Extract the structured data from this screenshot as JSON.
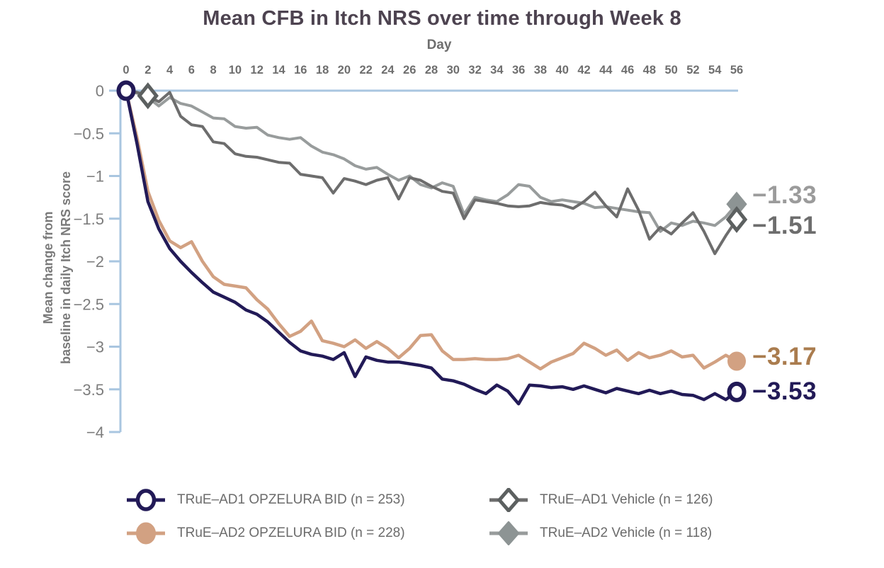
{
  "title": "Mean CFB in Itch NRS over time through Week 8",
  "x_axis": {
    "label": "Day",
    "ticks": [
      0,
      2,
      4,
      6,
      8,
      10,
      12,
      14,
      16,
      18,
      20,
      22,
      24,
      26,
      28,
      30,
      32,
      34,
      36,
      38,
      40,
      42,
      44,
      46,
      48,
      50,
      52,
      54,
      56
    ]
  },
  "y_axis": {
    "label_line1": "Mean change from",
    "label_line2": "baseline in daily Itch NRS score",
    "tick_labels": [
      "0",
      "−0.5",
      "−1",
      "−1.5",
      "−2",
      "−2.5",
      "−3",
      "−3.5",
      "−4"
    ],
    "tick_values": [
      0,
      -0.5,
      -1,
      -1.5,
      -2,
      -2.5,
      -3,
      -3.5,
      -4
    ]
  },
  "colors": {
    "axis": "#a9c6e0",
    "title": "#4d4350",
    "x_tick_text": "#6e6e6e",
    "y_tick_text": "#7d7d7d",
    "day_label": "#6e6e6e",
    "y_axis_title": "#7a7a7a",
    "legend_text": "#6b6b6b"
  },
  "chart_data": {
    "type": "line",
    "xlabel": "Day",
    "ylabel": "Mean change from baseline in daily Itch NRS score",
    "xlim": [
      0,
      56
    ],
    "ylim": [
      -4,
      0
    ],
    "x_step_days": 1,
    "series": [
      {
        "name": "TRuE–AD1 OPZELURA BID (n = 253)",
        "color": "#221a57",
        "stroke_width": 4.5,
        "end_value_label": "−3.53",
        "label_color": "#221a57",
        "marker": {
          "shape": "circle",
          "fill": "#ffffff",
          "stroke": "#221a57",
          "days": [
            0,
            56
          ]
        },
        "values": [
          0,
          -0.62,
          -1.3,
          -1.62,
          -1.85,
          -2.0,
          -2.13,
          -2.25,
          -2.36,
          -2.42,
          -2.48,
          -2.57,
          -2.62,
          -2.71,
          -2.83,
          -2.95,
          -3.05,
          -3.09,
          -3.11,
          -3.15,
          -3.07,
          -3.35,
          -3.12,
          -3.16,
          -3.18,
          -3.18,
          -3.2,
          -3.22,
          -3.25,
          -3.38,
          -3.4,
          -3.44,
          -3.5,
          -3.55,
          -3.45,
          -3.52,
          -3.67,
          -3.45,
          -3.46,
          -3.48,
          -3.47,
          -3.5,
          -3.46,
          -3.5,
          -3.54,
          -3.49,
          -3.52,
          -3.55,
          -3.51,
          -3.55,
          -3.52,
          -3.56,
          -3.57,
          -3.62,
          -3.55,
          -3.62,
          -3.53
        ]
      },
      {
        "name": "TRuE–AD2 OPZELURA BID (n = 228)",
        "color": "#d2a182",
        "stroke_width": 4.5,
        "end_value_label": "−3.17",
        "label_color": "#aa7c4e",
        "marker": {
          "shape": "circle",
          "fill": "#d2a182",
          "stroke": "#d2a182",
          "days": [
            56
          ]
        },
        "values": [
          0,
          -0.55,
          -1.18,
          -1.52,
          -1.76,
          -1.84,
          -1.77,
          -2.0,
          -2.18,
          -2.27,
          -2.29,
          -2.31,
          -2.45,
          -2.56,
          -2.73,
          -2.88,
          -2.82,
          -2.7,
          -2.93,
          -2.96,
          -3.0,
          -2.92,
          -3.02,
          -2.94,
          -3.02,
          -3.13,
          -3.02,
          -2.87,
          -2.86,
          -3.05,
          -3.15,
          -3.15,
          -3.14,
          -3.15,
          -3.15,
          -3.14,
          -3.1,
          -3.18,
          -3.26,
          -3.18,
          -3.13,
          -3.08,
          -2.96,
          -3.02,
          -3.1,
          -3.04,
          -3.16,
          -3.07,
          -3.13,
          -3.1,
          -3.05,
          -3.12,
          -3.1,
          -3.25,
          -3.18,
          -3.1,
          -3.17
        ]
      },
      {
        "name": "TRuE–AD1 Vehicle (n = 126)",
        "color": "#6d6d6d",
        "stroke_width": 4,
        "end_value_label": "−1.51",
        "label_color": "#6d6d6d",
        "marker": {
          "shape": "diamond",
          "fill": "#ffffff",
          "stroke": "#5c6060",
          "days": [
            2,
            56
          ]
        },
        "values": [
          0,
          -0.02,
          -0.06,
          -0.13,
          -0.02,
          -0.3,
          -0.4,
          -0.42,
          -0.6,
          -0.62,
          -0.74,
          -0.77,
          -0.78,
          -0.81,
          -0.84,
          -0.85,
          -0.98,
          -1.0,
          -1.02,
          -1.2,
          -1.03,
          -1.06,
          -1.1,
          -1.05,
          -1.02,
          -1.27,
          -1.02,
          -1.05,
          -1.12,
          -1.18,
          -1.2,
          -1.5,
          -1.28,
          -1.3,
          -1.32,
          -1.35,
          -1.36,
          -1.35,
          -1.31,
          -1.33,
          -1.34,
          -1.38,
          -1.3,
          -1.19,
          -1.35,
          -1.48,
          -1.15,
          -1.4,
          -1.74,
          -1.6,
          -1.68,
          -1.55,
          -1.43,
          -1.65,
          -1.91,
          -1.7,
          -1.51
        ]
      },
      {
        "name": "TRuE–AD2 Vehicle (n = 118)",
        "color": "#989c9c",
        "stroke_width": 4,
        "end_value_label": "−1.33",
        "label_color": "#9b9b9b",
        "marker": {
          "shape": "diamond",
          "fill": "#8d9494",
          "stroke": "#8d9494",
          "days": [
            56
          ]
        },
        "values": [
          0,
          -0.03,
          -0.08,
          -0.18,
          -0.08,
          -0.15,
          -0.18,
          -0.25,
          -0.32,
          -0.33,
          -0.42,
          -0.44,
          -0.43,
          -0.52,
          -0.55,
          -0.57,
          -0.55,
          -0.65,
          -0.72,
          -0.75,
          -0.8,
          -0.88,
          -0.92,
          -0.9,
          -0.98,
          -1.05,
          -1.0,
          -1.1,
          -1.14,
          -1.08,
          -1.12,
          -1.45,
          -1.25,
          -1.28,
          -1.3,
          -1.22,
          -1.1,
          -1.12,
          -1.25,
          -1.3,
          -1.28,
          -1.3,
          -1.32,
          -1.37,
          -1.36,
          -1.38,
          -1.4,
          -1.42,
          -1.43,
          -1.65,
          -1.55,
          -1.58,
          -1.53,
          -1.55,
          -1.58,
          -1.48,
          -1.33
        ]
      }
    ]
  },
  "annotations": [
    {
      "text": "−1.33",
      "color": "#9b9b9b"
    },
    {
      "text": "−1.51",
      "color": "#6d6d6d"
    },
    {
      "text": "−3.17",
      "color": "#aa7c4e"
    },
    {
      "text": "−3.53",
      "color": "#221a57"
    }
  ],
  "legend": {
    "items": [
      {
        "label": "TRuE–AD1 OPZELURA BID (n = 253)"
      },
      {
        "label": "TRuE–AD2 OPZELURA BID (n = 228)"
      },
      {
        "label": "TRuE–AD1 Vehicle (n = 126)"
      },
      {
        "label": "TRuE–AD2 Vehicle (n = 118)"
      }
    ]
  }
}
